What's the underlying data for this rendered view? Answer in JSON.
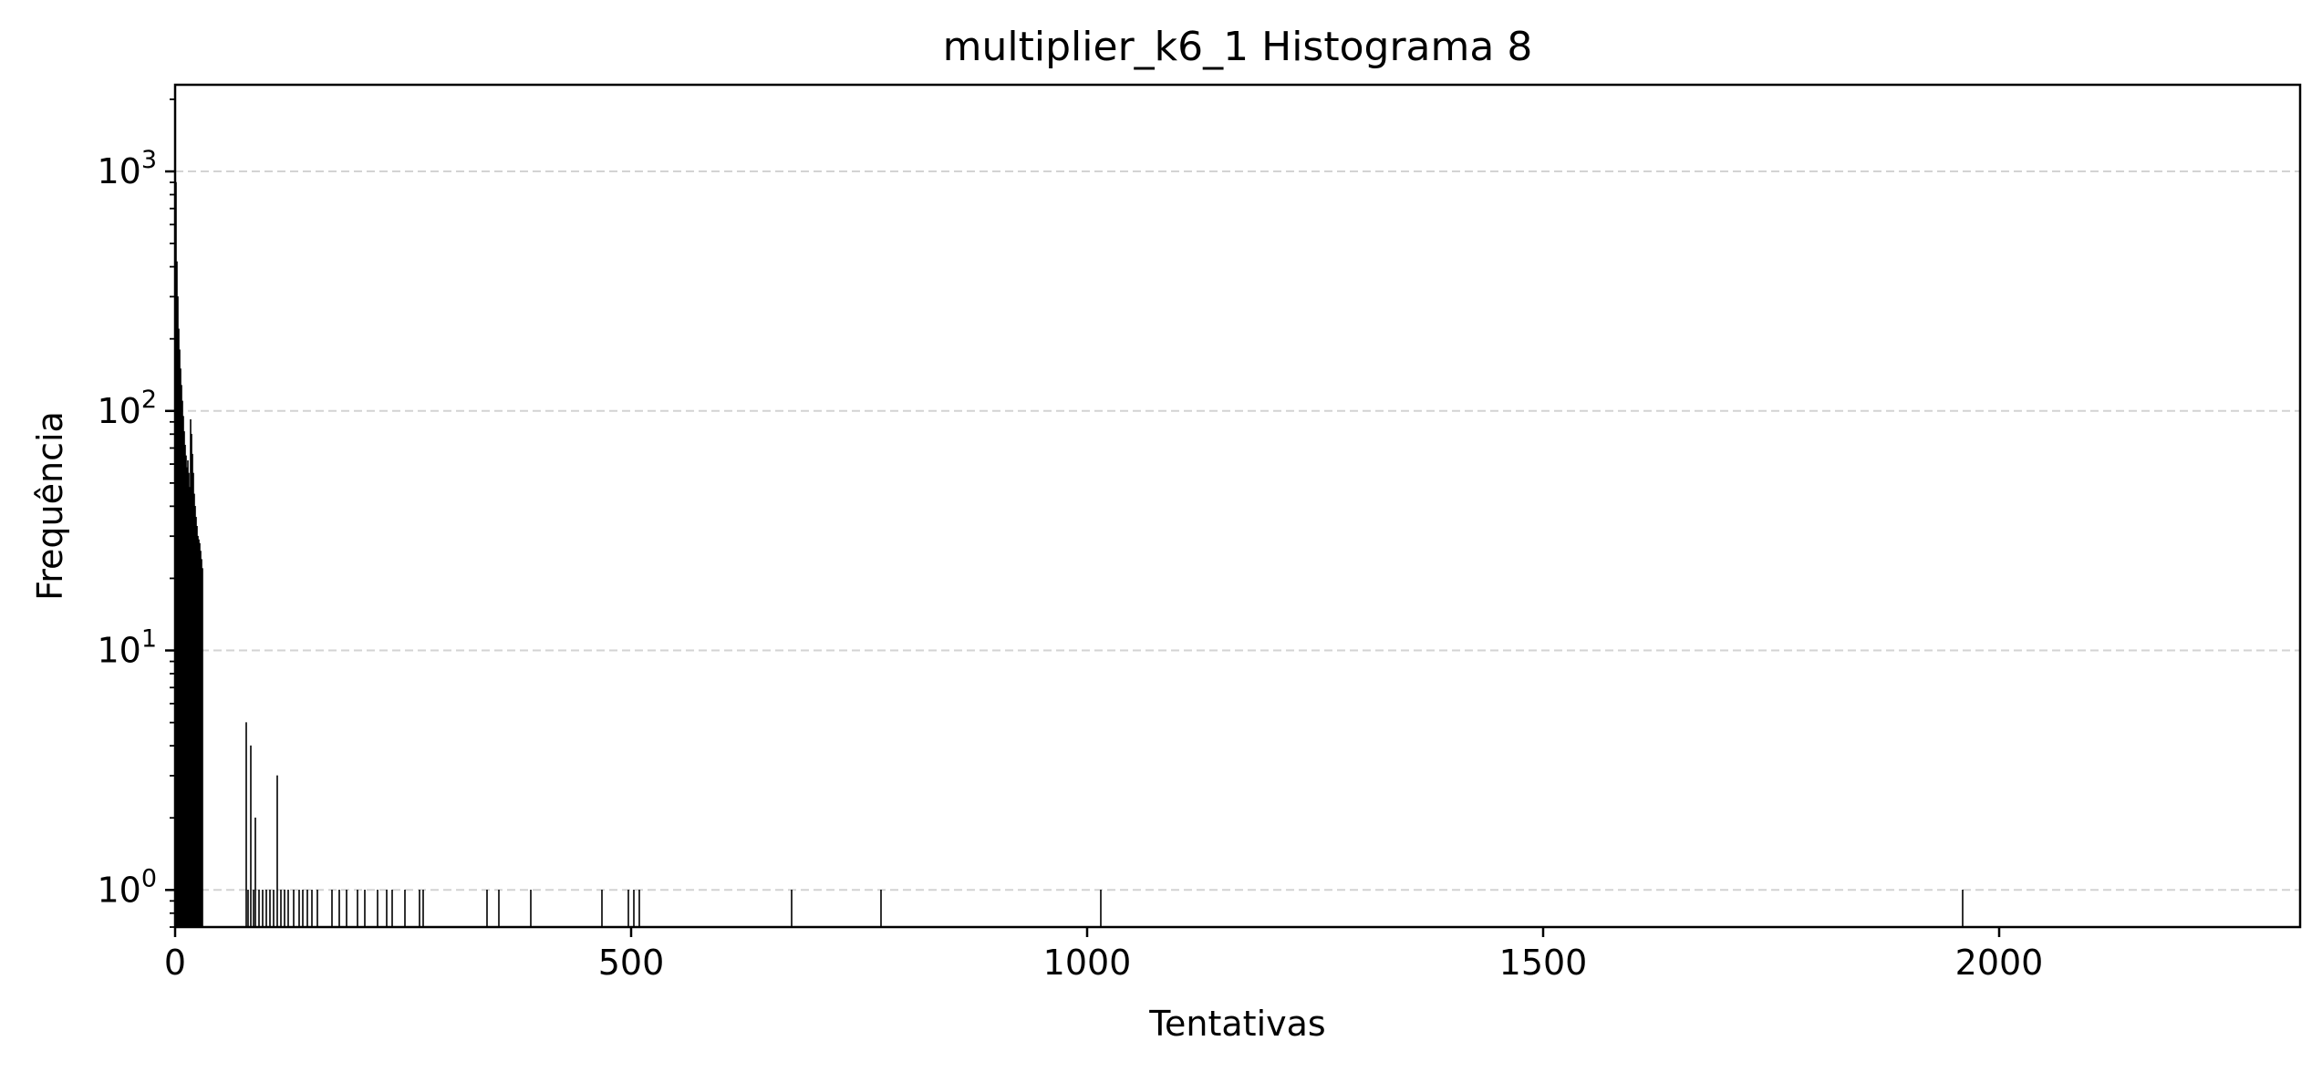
{
  "chart_data": {
    "type": "bar",
    "title": "multiplier_k6_1 Histograma 8",
    "xlabel": "Tentativas",
    "ylabel": "Frequência",
    "y_scale": "log",
    "xlim": [
      0,
      2330
    ],
    "ylim": [
      0.7,
      2300
    ],
    "x_ticks": [
      0,
      500,
      1000,
      1500,
      2000
    ],
    "y_ticks": [
      {
        "value": 1,
        "base": "10",
        "exp": "0"
      },
      {
        "value": 10,
        "base": "10",
        "exp": "1"
      },
      {
        "value": 100,
        "base": "10",
        "exp": "2"
      },
      {
        "value": 1000,
        "base": "10",
        "exp": "3"
      }
    ],
    "grid": "y-major dashed",
    "bar_color": "#000000",
    "bars": [
      {
        "x": 1,
        "y": 900
      },
      {
        "x": 2,
        "y": 420
      },
      {
        "x": 3,
        "y": 300
      },
      {
        "x": 4,
        "y": 220
      },
      {
        "x": 5,
        "y": 180
      },
      {
        "x": 6,
        "y": 150
      },
      {
        "x": 7,
        "y": 128
      },
      {
        "x": 8,
        "y": 110
      },
      {
        "x": 9,
        "y": 95
      },
      {
        "x": 10,
        "y": 82
      },
      {
        "x": 11,
        "y": 72
      },
      {
        "x": 12,
        "y": 65
      },
      {
        "x": 13,
        "y": 58
      },
      {
        "x": 14,
        "y": 62
      },
      {
        "x": 15,
        "y": 55
      },
      {
        "x": 16,
        "y": 48
      },
      {
        "x": 17,
        "y": 92
      },
      {
        "x": 18,
        "y": 80
      },
      {
        "x": 19,
        "y": 66
      },
      {
        "x": 20,
        "y": 55
      },
      {
        "x": 21,
        "y": 45
      },
      {
        "x": 22,
        "y": 40
      },
      {
        "x": 23,
        "y": 36
      },
      {
        "x": 24,
        "y": 33
      },
      {
        "x": 25,
        "y": 30
      },
      {
        "x": 26,
        "y": 29
      },
      {
        "x": 27,
        "y": 28
      },
      {
        "x": 28,
        "y": 26
      },
      {
        "x": 29,
        "y": 24
      },
      {
        "x": 30,
        "y": 22
      },
      {
        "x": 78,
        "y": 5
      },
      {
        "x": 80,
        "y": 1
      },
      {
        "x": 83,
        "y": 4
      },
      {
        "x": 86,
        "y": 1
      },
      {
        "x": 88,
        "y": 2
      },
      {
        "x": 92,
        "y": 1
      },
      {
        "x": 96,
        "y": 1
      },
      {
        "x": 100,
        "y": 1
      },
      {
        "x": 104,
        "y": 1
      },
      {
        "x": 108,
        "y": 1
      },
      {
        "x": 112,
        "y": 3
      },
      {
        "x": 116,
        "y": 1
      },
      {
        "x": 120,
        "y": 1
      },
      {
        "x": 124,
        "y": 1
      },
      {
        "x": 130,
        "y": 1
      },
      {
        "x": 136,
        "y": 1
      },
      {
        "x": 140,
        "y": 1
      },
      {
        "x": 145,
        "y": 1
      },
      {
        "x": 150,
        "y": 1
      },
      {
        "x": 156,
        "y": 1
      },
      {
        "x": 172,
        "y": 1
      },
      {
        "x": 180,
        "y": 1
      },
      {
        "x": 188,
        "y": 1
      },
      {
        "x": 200,
        "y": 1
      },
      {
        "x": 208,
        "y": 1
      },
      {
        "x": 222,
        "y": 1
      },
      {
        "x": 232,
        "y": 1
      },
      {
        "x": 238,
        "y": 1
      },
      {
        "x": 252,
        "y": 1
      },
      {
        "x": 268,
        "y": 1
      },
      {
        "x": 272,
        "y": 1
      },
      {
        "x": 342,
        "y": 1
      },
      {
        "x": 355,
        "y": 1
      },
      {
        "x": 390,
        "y": 1
      },
      {
        "x": 468,
        "y": 1
      },
      {
        "x": 497,
        "y": 1
      },
      {
        "x": 503,
        "y": 1
      },
      {
        "x": 509,
        "y": 1
      },
      {
        "x": 676,
        "y": 1
      },
      {
        "x": 774,
        "y": 1
      },
      {
        "x": 1015,
        "y": 1
      },
      {
        "x": 1960,
        "y": 1
      }
    ]
  }
}
